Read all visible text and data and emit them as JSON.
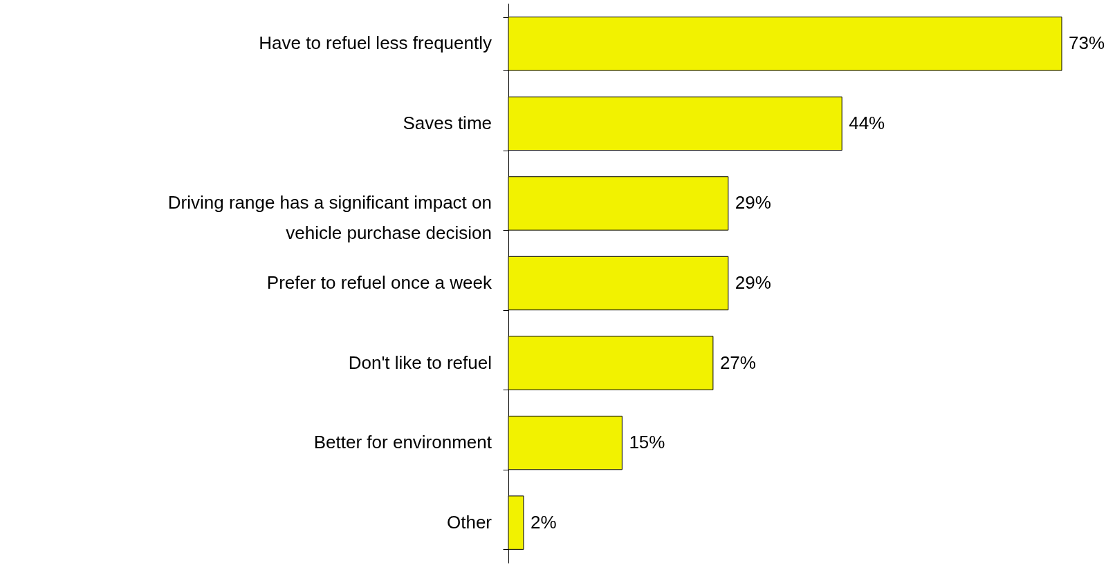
{
  "chart_data": {
    "type": "bar",
    "orientation": "horizontal",
    "categories": [
      "Have to refuel less frequently",
      "Saves time",
      "Driving range has a significant impact on vehicle purchase decision",
      "Prefer to refuel once a week",
      "Don't like to refuel",
      "Better for environment",
      "Other"
    ],
    "values": [
      73,
      44,
      29,
      29,
      27,
      15,
      2
    ],
    "value_labels": [
      "73%",
      "44%",
      "29%",
      "29%",
      "27%",
      "15%",
      "2%"
    ],
    "color": "#f2f200",
    "grid": false,
    "tick_labels": "y"
  }
}
